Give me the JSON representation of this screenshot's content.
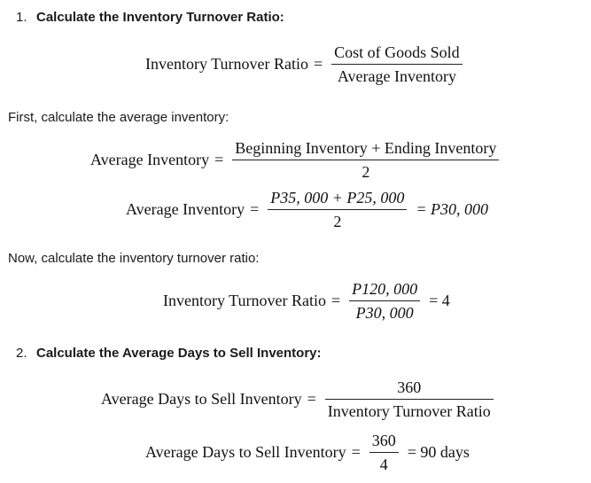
{
  "step1": {
    "number": "1.",
    "heading": "Calculate the Inventory Turnover Ratio:"
  },
  "formula1": {
    "lhs": "Inventory Turnover Ratio",
    "eq": "=",
    "numerator": "Cost of Goods Sold",
    "denominator": "Average Inventory"
  },
  "text_first": "First, calculate the average inventory:",
  "formula2": {
    "lhs": "Average Inventory",
    "eq": "=",
    "numerator": "Beginning Inventory + Ending Inventory",
    "denominator": "2"
  },
  "formula3": {
    "lhs": "Average Inventory",
    "eq": "=",
    "numerator": "P35, 000 + P25, 000",
    "denominator": "2",
    "result": "= P30, 000"
  },
  "text_now": "Now, calculate the inventory turnover ratio:",
  "formula4": {
    "lhs": "Inventory Turnover Ratio",
    "eq": "=",
    "numerator": "P120, 000",
    "denominator": "P30, 000",
    "result": "= 4"
  },
  "step2": {
    "number": "2.",
    "heading": "Calculate the Average Days to Sell Inventory:"
  },
  "formula5": {
    "lhs": "Average Days to Sell Inventory",
    "eq": "=",
    "numerator": "360",
    "denominator": "Inventory Turnover Ratio"
  },
  "formula6": {
    "lhs": "Average Days to Sell Inventory",
    "eq": "=",
    "numerator": "360",
    "denominator": "4",
    "result": "= 90 days"
  }
}
